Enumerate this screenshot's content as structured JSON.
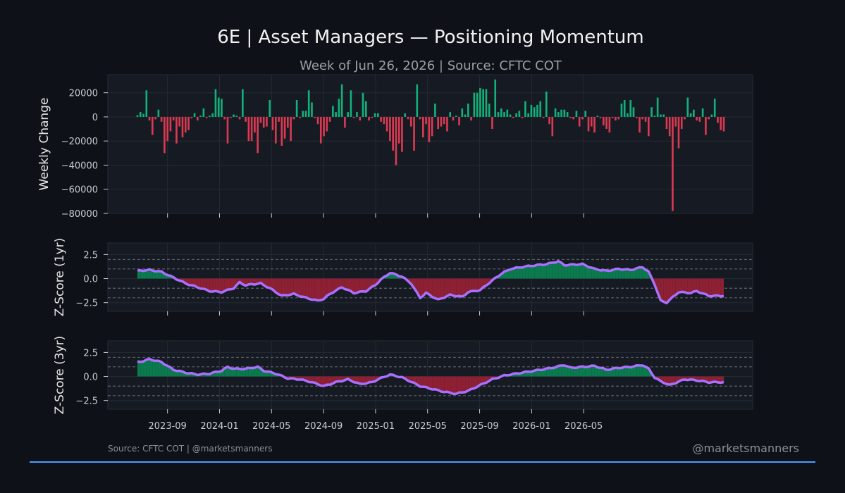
{
  "header": {
    "title": "6E | Asset Managers — Positioning Momentum",
    "subtitle": "Week of Jun 26, 2026 | Source: CFTC COT"
  },
  "footer": {
    "source": "Source: CFTC COT | @marketsmanners",
    "handle": "@marketsmanners"
  },
  "colors": {
    "background": "#0e1117",
    "panel": "#161a22",
    "positive": "#12b07a",
    "negative": "#d93a52",
    "positive_fill": "#0b7a4e",
    "negative_fill": "#8e2033",
    "line": "#a970ff",
    "accent_rule": "#4a9eff"
  },
  "chart_data": [
    {
      "type": "bar",
      "ylabel": "Weekly Change",
      "ylim": [
        -80000,
        35000
      ],
      "yticks": [
        20000,
        0,
        -20000,
        -40000,
        -60000,
        -80000
      ],
      "ytick_labels": [
        "20000",
        "0",
        "−20000",
        "−40000",
        "−60000",
        "−80000"
      ],
      "x_start": "2023-06-23",
      "x_step_weeks": 1,
      "values": [
        1500,
        4000,
        2500,
        22000,
        -3000,
        -15000,
        -2000,
        6000,
        -4000,
        -30000,
        -20000,
        -12000,
        -3000,
        -22000,
        -8000,
        -17000,
        -13000,
        -11000,
        -1000,
        3000,
        -3000,
        1000,
        7000,
        -1000,
        1000,
        3000,
        23000,
        16000,
        15000,
        -2000,
        -22000,
        -1000,
        2000,
        1000,
        -2000,
        23000,
        -4000,
        -20000,
        -20000,
        -13000,
        -30000,
        -5000,
        -9000,
        -8000,
        14000,
        -11000,
        -22000,
        -4000,
        -24000,
        -18000,
        -9000,
        -20000,
        -2000,
        14000,
        -1000,
        5000,
        5000,
        22000,
        12000,
        -1000,
        -6000,
        -22000,
        -16000,
        -12000,
        -4000,
        9000,
        4000,
        15000,
        27000,
        -9000,
        4000,
        22000,
        -1000,
        4000,
        -3000,
        20000,
        13000,
        -3000,
        -1000,
        3000,
        3000,
        -4000,
        -6000,
        -12000,
        -20000,
        -28000,
        -40000,
        -22000,
        -29000,
        3000,
        -2000,
        -8000,
        -28000,
        27000,
        -2000,
        -17000,
        -6000,
        -21000,
        -16000,
        11000,
        -10000,
        -8000,
        -6000,
        -12000,
        4000,
        -3000,
        1000,
        -7000,
        7000,
        2000,
        11000,
        -3000,
        20000,
        20000,
        24000,
        23000,
        23000,
        11000,
        -10000,
        31000,
        4000,
        7000,
        4000,
        6000,
        2000,
        -1000,
        3000,
        5000,
        -1000,
        13000,
        3000,
        10000,
        8000,
        10000,
        13000,
        -1000,
        21000,
        -6000,
        -16000,
        7000,
        4000,
        6000,
        6000,
        4000,
        -1000,
        -2000,
        5000,
        -8000,
        -2000,
        5000,
        -12000,
        -8000,
        -13000,
        1000,
        -1000,
        -7000,
        -10000,
        -13000,
        -1000,
        -3000,
        -2000,
        11000,
        14000,
        3000,
        14000,
        8000,
        -1000,
        -13000,
        -2000,
        -4000,
        -16000,
        8000,
        1000,
        16000,
        2000,
        2000,
        -10000,
        -16000,
        -78000,
        -8000,
        -26000,
        -10000,
        -2000,
        16000,
        3000,
        6000,
        -3000,
        -4000,
        7000,
        -15000,
        -2000,
        2000,
        15000,
        -5000,
        -11000,
        -12000
      ]
    },
    {
      "type": "area",
      "ylabel": "Z-Score (1yr)",
      "ylim": [
        -3.4,
        3.7
      ],
      "yticks": [
        2.5,
        0.0,
        -2.5
      ],
      "ytick_labels": [
        "2.5",
        "0.0",
        "−2.5"
      ],
      "reference_lines": [
        2,
        1,
        -1,
        -2
      ],
      "x_start": "2023-06-23",
      "x_step_weeks": 1,
      "anchors": [
        [
          0,
          0.8
        ],
        [
          4,
          0.9
        ],
        [
          8,
          0.7
        ],
        [
          12,
          0.1
        ],
        [
          16,
          -0.5
        ],
        [
          20,
          -0.9
        ],
        [
          24,
          -1.3
        ],
        [
          28,
          -1.4
        ],
        [
          32,
          -1.0
        ],
        [
          34,
          -0.4
        ],
        [
          36,
          -0.7
        ],
        [
          38,
          -0.6
        ],
        [
          41,
          -0.5
        ],
        [
          44,
          -1.0
        ],
        [
          48,
          -1.8
        ],
        [
          52,
          -1.6
        ],
        [
          56,
          -2.0
        ],
        [
          60,
          -2.3
        ],
        [
          62,
          -2.1
        ],
        [
          64,
          -1.6
        ],
        [
          68,
          -0.9
        ],
        [
          72,
          -1.5
        ],
        [
          76,
          -1.3
        ],
        [
          79,
          -0.7
        ],
        [
          81,
          -0.1
        ],
        [
          84,
          0.6
        ],
        [
          88,
          0.2
        ],
        [
          91,
          -0.5
        ],
        [
          94,
          -2.0
        ],
        [
          96,
          -1.5
        ],
        [
          100,
          -2.2
        ],
        [
          104,
          -1.7
        ],
        [
          108,
          -1.9
        ],
        [
          110,
          -1.4
        ],
        [
          114,
          -1.2
        ],
        [
          118,
          -0.2
        ],
        [
          121,
          0.5
        ],
        [
          124,
          1.0
        ],
        [
          130,
          1.3
        ],
        [
          136,
          1.5
        ],
        [
          140,
          1.8
        ],
        [
          142,
          1.4
        ],
        [
          148,
          1.5
        ],
        [
          152,
          1.0
        ],
        [
          156,
          0.8
        ],
        [
          160,
          1.0
        ],
        [
          164,
          0.9
        ],
        [
          168,
          1.2
        ],
        [
          170,
          0.7
        ],
        [
          172,
          -0.6
        ],
        [
          174,
          -2.3
        ],
        [
          176,
          -2.5
        ],
        [
          180,
          -1.4
        ],
        [
          184,
          -1.5
        ],
        [
          186,
          -1.3
        ],
        [
          190,
          -1.8
        ]
      ]
    },
    {
      "type": "area",
      "ylabel": "Z-Score (3yr)",
      "ylim": [
        -3.4,
        3.7
      ],
      "yticks": [
        2.5,
        0.0,
        -2.5
      ],
      "ytick_labels": [
        "2.5",
        "0.0",
        "−2.5"
      ],
      "reference_lines": [
        2,
        1,
        -1,
        -2
      ],
      "x_start": "2023-06-23",
      "x_step_weeks": 1,
      "x_tick_labels": [
        "2023-09",
        "2024-01",
        "2024-05",
        "2024-09",
        "2025-01",
        "2025-05",
        "2025-09",
        "2026-01",
        "2026-05"
      ],
      "anchors": [
        [
          0,
          1.5
        ],
        [
          2,
          1.6
        ],
        [
          4,
          1.8
        ],
        [
          8,
          1.5
        ],
        [
          12,
          0.7
        ],
        [
          16,
          0.4
        ],
        [
          20,
          0.2
        ],
        [
          24,
          0.3
        ],
        [
          28,
          0.6
        ],
        [
          30,
          1.0
        ],
        [
          32,
          0.8
        ],
        [
          36,
          0.8
        ],
        [
          40,
          1.0
        ],
        [
          42,
          0.6
        ],
        [
          46,
          0.3
        ],
        [
          50,
          -0.2
        ],
        [
          54,
          -0.3
        ],
        [
          58,
          -0.6
        ],
        [
          62,
          -1.0
        ],
        [
          66,
          -0.6
        ],
        [
          70,
          -0.3
        ],
        [
          74,
          -0.8
        ],
        [
          78,
          -0.6
        ],
        [
          80,
          -0.3
        ],
        [
          84,
          0.2
        ],
        [
          88,
          -0.1
        ],
        [
          90,
          -0.4
        ],
        [
          94,
          -1.0
        ],
        [
          98,
          -1.3
        ],
        [
          102,
          -1.6
        ],
        [
          106,
          -1.8
        ],
        [
          110,
          -1.5
        ],
        [
          114,
          -0.9
        ],
        [
          118,
          -0.3
        ],
        [
          122,
          0.1
        ],
        [
          126,
          0.3
        ],
        [
          132,
          0.6
        ],
        [
          138,
          0.9
        ],
        [
          142,
          1.2
        ],
        [
          144,
          0.9
        ],
        [
          148,
          1.0
        ],
        [
          152,
          1.1
        ],
        [
          156,
          0.7
        ],
        [
          160,
          0.9
        ],
        [
          164,
          1.0
        ],
        [
          168,
          1.2
        ],
        [
          170,
          0.8
        ],
        [
          172,
          -0.1
        ],
        [
          174,
          -0.5
        ],
        [
          177,
          -0.9
        ],
        [
          182,
          -0.3
        ],
        [
          186,
          -0.4
        ],
        [
          190,
          -0.6
        ]
      ]
    }
  ]
}
